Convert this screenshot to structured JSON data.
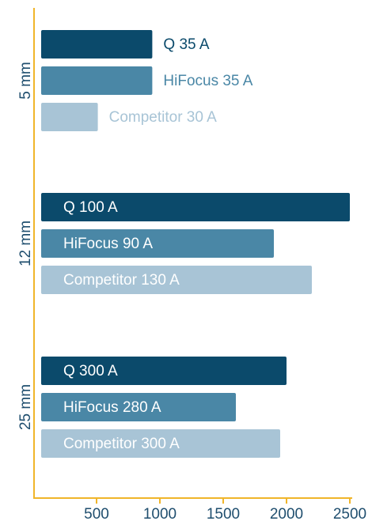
{
  "chart_data": {
    "type": "hbar",
    "categories": [
      "5 mm",
      "12 mm",
      "25 mm"
    ],
    "series": [
      {
        "color": "#0b4a6b",
        "values": [
          940,
          2500,
          2000
        ],
        "labels": [
          "Q 35 A",
          "Q 100 A",
          "Q 300 A"
        ]
      },
      {
        "color": "#4a87a6",
        "values": [
          940,
          1900,
          1600
        ],
        "labels": [
          "HiFocus 35 A",
          "HiFocus 90 A",
          "HiFocus 280 A"
        ]
      },
      {
        "color": "#a8c4d6",
        "values": [
          510,
          2200,
          1950
        ],
        "labels": [
          "Competitor 30 A",
          "Competitor 130 A",
          "Competitor 300 A"
        ]
      }
    ],
    "label_inside": [
      false,
      true,
      true
    ],
    "xlim": [
      0,
      2500
    ],
    "xticks": [
      500,
      1000,
      1500,
      2000,
      2500
    ],
    "axis_color": "#f0b52a",
    "category_label_color": "#1f4e6e"
  }
}
